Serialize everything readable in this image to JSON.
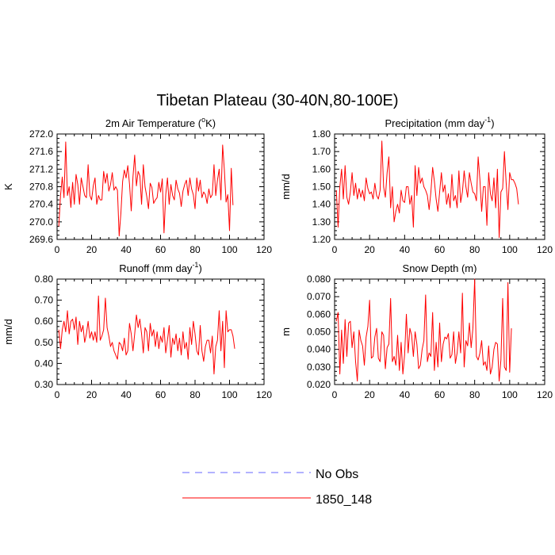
{
  "figure_title": "Tibetan Plateau (30-40N,80-100E)",
  "legend": [
    {
      "label": "No Obs",
      "color": "#6666ff",
      "dash": true
    },
    {
      "label": "1850_148",
      "color": "#ff0000",
      "dash": false
    }
  ],
  "chart_data": [
    {
      "type": "line",
      "title": "2m Air Temperature (",
      "title_sup": "o",
      "title_after": "K)",
      "ylabel": "K",
      "xlim": [
        0,
        120
      ],
      "ylim": [
        269.6,
        272.0
      ],
      "xticks": [
        0,
        20,
        40,
        60,
        80,
        100,
        120
      ],
      "xticklabels": [
        "0",
        "20",
        "40",
        "60",
        "80",
        "100",
        "120"
      ],
      "yticks": [
        269.6,
        270.0,
        270.4,
        270.8,
        271.2,
        271.6,
        272.0
      ],
      "yticklabels": [
        "269.6",
        "270.0",
        "270.4",
        "270.8",
        "271.2",
        "271.6",
        "272.0"
      ],
      "series": [
        {
          "name": "1850_148",
          "color": "#ff0000",
          "x_start": 1,
          "values": [
            269.9,
            270.6,
            271.02,
            270.55,
            271.82,
            270.6,
            270.8,
            270.33,
            270.9,
            270.4,
            271.08,
            270.85,
            270.4,
            271.0,
            270.8,
            270.6,
            270.55,
            271.3,
            270.6,
            270.5,
            270.82,
            271.0,
            270.4,
            270.6,
            270.5,
            270.5,
            271.15,
            270.88,
            271.1,
            270.7,
            270.85,
            271.12,
            270.72,
            270.8,
            270.72,
            269.68,
            270.2,
            270.92,
            271.18,
            271.0,
            271.28,
            270.86,
            270.25,
            271.02,
            271.52,
            270.82,
            271.15,
            271.05,
            270.4,
            271.3,
            270.8,
            270.58,
            270.3,
            270.88,
            270.78,
            270.42,
            270.5,
            270.55,
            270.9,
            270.68,
            270.98,
            269.75,
            270.62,
            271.0,
            270.4,
            270.85,
            270.6,
            270.5,
            270.95,
            270.75,
            270.65,
            270.35,
            270.7,
            270.85,
            270.95,
            270.6,
            271.0,
            270.75,
            270.62,
            270.3,
            271.0,
            270.7,
            270.95,
            270.55,
            270.68,
            270.62,
            270.42,
            270.75,
            270.55,
            270.62,
            271.3,
            270.6,
            270.95,
            271.2,
            270.5,
            271.75,
            271.18,
            270.45,
            270.62,
            269.8,
            271.22,
            270.38
          ]
        }
      ]
    },
    {
      "type": "line",
      "title": "Precipitation (mm day",
      "title_sup": "-1",
      "title_after": ")",
      "ylabel": "mm/d",
      "xlim": [
        0,
        120
      ],
      "ylim": [
        1.2,
        1.8
      ],
      "xticks": [
        0,
        20,
        40,
        60,
        80,
        100,
        120
      ],
      "xticklabels": [
        "0",
        "20",
        "40",
        "60",
        "80",
        "100",
        "120"
      ],
      "yticks": [
        1.2,
        1.3,
        1.4,
        1.5,
        1.6,
        1.7,
        1.8
      ],
      "yticklabels": [
        "1.20",
        "1.30",
        "1.40",
        "1.50",
        "1.60",
        "1.70",
        "1.80"
      ],
      "series": [
        {
          "name": "1850_148",
          "color": "#ff0000",
          "x_start": 1,
          "values": [
            1.48,
            1.27,
            1.5,
            1.6,
            1.43,
            1.62,
            1.44,
            1.4,
            1.47,
            1.58,
            1.45,
            1.52,
            1.43,
            1.49,
            1.44,
            1.48,
            1.42,
            1.55,
            1.49,
            1.46,
            1.47,
            1.43,
            1.52,
            1.45,
            1.43,
            1.48,
            1.76,
            1.5,
            1.44,
            1.58,
            1.67,
            1.38,
            1.5,
            1.3,
            1.36,
            1.4,
            1.35,
            1.48,
            1.42,
            1.41,
            1.5,
            1.5,
            1.4,
            1.45,
            1.27,
            1.62,
            1.45,
            1.61,
            1.52,
            1.55,
            1.5,
            1.48,
            1.45,
            1.37,
            1.47,
            1.61,
            1.53,
            1.43,
            1.36,
            1.47,
            1.58,
            1.47,
            1.51,
            1.4,
            1.46,
            1.38,
            1.57,
            1.42,
            1.45,
            1.38,
            1.59,
            1.41,
            1.47,
            1.59,
            1.5,
            1.44,
            1.58,
            1.52,
            1.47,
            1.46,
            1.42,
            1.67,
            1.54,
            1.36,
            1.5,
            1.5,
            1.28,
            1.58,
            1.46,
            1.42,
            1.55,
            1.38,
            1.6,
            1.21,
            1.47,
            1.49,
            1.7,
            1.52,
            1.37,
            1.58,
            1.54,
            1.54,
            1.52,
            1.49,
            1.4
          ]
        }
      ]
    },
    {
      "type": "line",
      "title": "Runoff (mm day",
      "title_sup": "-1",
      "title_after": ")",
      "ylabel": "mm/d",
      "xlim": [
        0,
        120
      ],
      "ylim": [
        0.3,
        0.8
      ],
      "xticks": [
        0,
        20,
        40,
        60,
        80,
        100,
        120
      ],
      "xticklabels": [
        "0",
        "20",
        "40",
        "60",
        "80",
        "100",
        "120"
      ],
      "yticks": [
        0.3,
        0.4,
        0.5,
        0.6,
        0.7,
        0.8
      ],
      "yticklabels": [
        "0.30",
        "0.40",
        "0.50",
        "0.60",
        "0.70",
        "0.80"
      ],
      "series": [
        {
          "name": "1850_148",
          "color": "#ff0000",
          "x_start": 1,
          "values": [
            0.56,
            0.47,
            0.56,
            0.6,
            0.55,
            0.65,
            0.54,
            0.6,
            0.61,
            0.56,
            0.62,
            0.49,
            0.6,
            0.55,
            0.58,
            0.5,
            0.54,
            0.6,
            0.52,
            0.55,
            0.51,
            0.55,
            0.5,
            0.72,
            0.51,
            0.53,
            0.56,
            0.71,
            0.57,
            0.53,
            0.48,
            0.5,
            0.46,
            0.44,
            0.42,
            0.5,
            0.49,
            0.46,
            0.52,
            0.44,
            0.46,
            0.59,
            0.54,
            0.46,
            0.54,
            0.63,
            0.57,
            0.61,
            0.54,
            0.45,
            0.57,
            0.55,
            0.46,
            0.59,
            0.53,
            0.56,
            0.48,
            0.55,
            0.47,
            0.53,
            0.5,
            0.57,
            0.45,
            0.51,
            0.58,
            0.43,
            0.52,
            0.49,
            0.54,
            0.46,
            0.52,
            0.44,
            0.55,
            0.47,
            0.5,
            0.42,
            0.57,
            0.49,
            0.6,
            0.54,
            0.46,
            0.44,
            0.58,
            0.46,
            0.41,
            0.48,
            0.51,
            0.51,
            0.45,
            0.53,
            0.35,
            0.48,
            0.51,
            0.65,
            0.46,
            0.6,
            0.38,
            0.65,
            0.55,
            0.56,
            0.56,
            0.53,
            0.47
          ]
        }
      ]
    },
    {
      "type": "line",
      "title": "Snow Depth (m)",
      "title_sup": "",
      "title_after": "",
      "ylabel": "m",
      "xlim": [
        0,
        120
      ],
      "ylim": [
        0.02,
        0.08
      ],
      "xticks": [
        0,
        20,
        40,
        60,
        80,
        100,
        120
      ],
      "xticklabels": [
        "0",
        "20",
        "40",
        "60",
        "80",
        "100",
        "120"
      ],
      "yticks": [
        0.02,
        0.03,
        0.04,
        0.05,
        0.06,
        0.07,
        0.08
      ],
      "yticklabels": [
        "0.020",
        "0.030",
        "0.040",
        "0.050",
        "0.060",
        "0.070",
        "0.080"
      ],
      "series": [
        {
          "name": "1850_148",
          "color": "#ff0000",
          "x_start": 1,
          "values": [
            0.056,
            0.061,
            0.026,
            0.051,
            0.032,
            0.057,
            0.036,
            0.055,
            0.056,
            0.041,
            0.05,
            0.033,
            0.022,
            0.051,
            0.045,
            0.042,
            0.031,
            0.047,
            0.053,
            0.068,
            0.035,
            0.036,
            0.047,
            0.052,
            0.035,
            0.033,
            0.05,
            0.048,
            0.029,
            0.041,
            0.043,
            0.069,
            0.033,
            0.036,
            0.031,
            0.048,
            0.028,
            0.044,
            0.026,
            0.037,
            0.06,
            0.038,
            0.052,
            0.048,
            0.036,
            0.05,
            0.043,
            0.029,
            0.031,
            0.04,
            0.045,
            0.071,
            0.033,
            0.038,
            0.036,
            0.061,
            0.028,
            0.044,
            0.03,
            0.055,
            0.033,
            0.043,
            0.047,
            0.046,
            0.049,
            0.035,
            0.037,
            0.05,
            0.032,
            0.038,
            0.05,
            0.038,
            0.072,
            0.03,
            0.045,
            0.042,
            0.055,
            0.041,
            0.052,
            0.08,
            0.036,
            0.034,
            0.038,
            0.045,
            0.031,
            0.033,
            0.028,
            0.042,
            0.026,
            0.03,
            0.04,
            0.044,
            0.043,
            0.022,
            0.034,
            0.069,
            0.03,
            0.028,
            0.078,
            0.027,
            0.052
          ]
        }
      ]
    }
  ]
}
